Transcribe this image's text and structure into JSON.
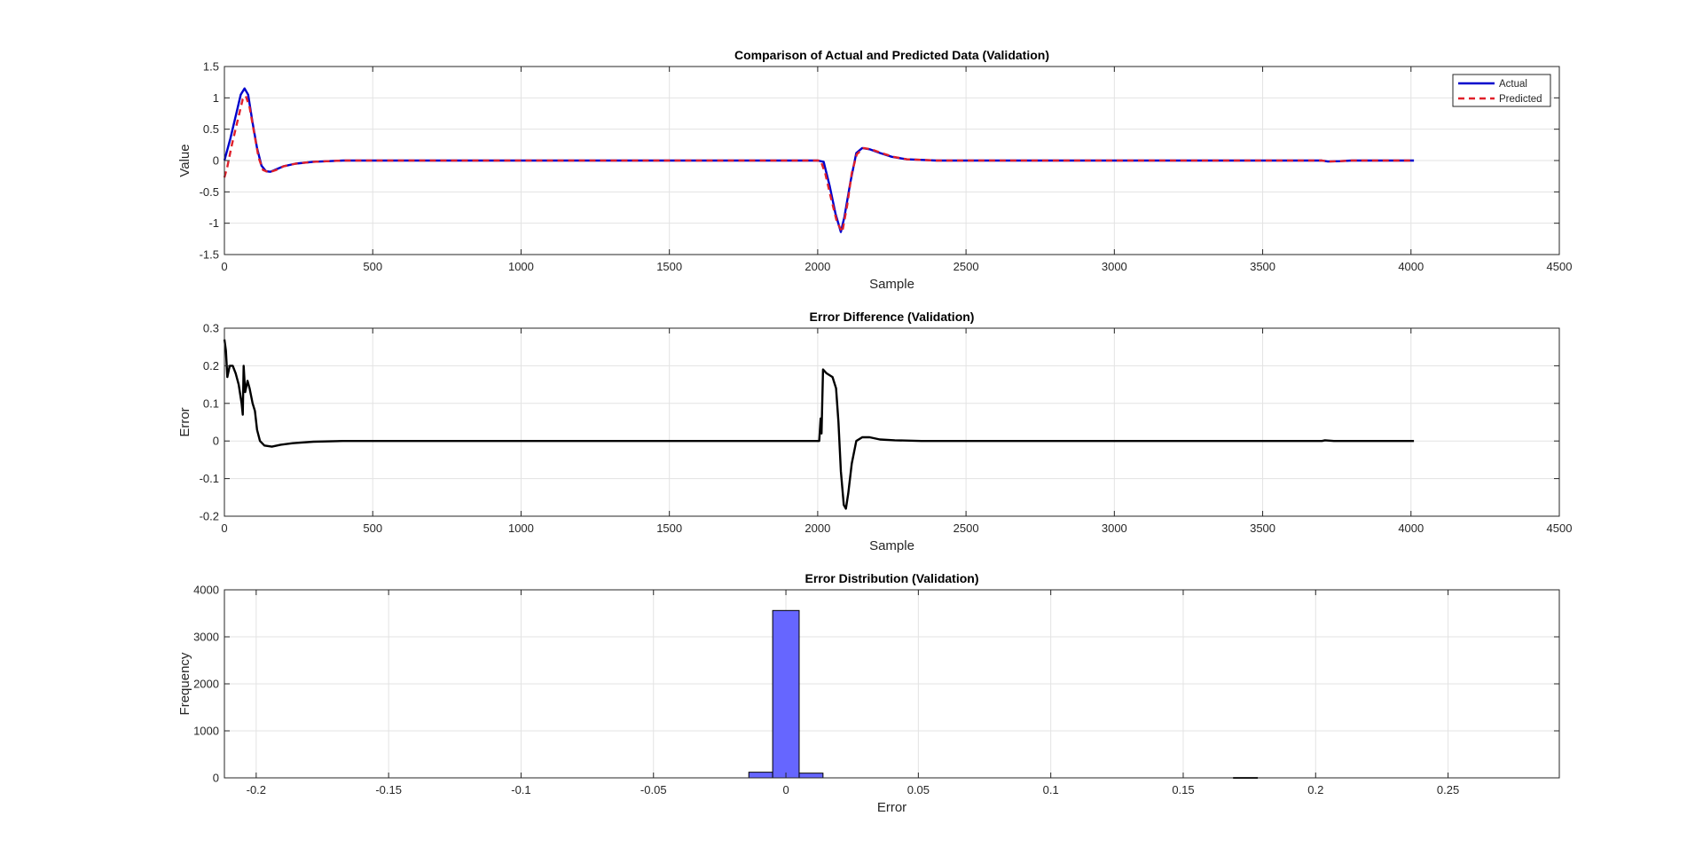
{
  "chart_data": [
    {
      "type": "line",
      "title": "Comparison of Actual and Predicted Data (Validation)",
      "xlabel": "Sample",
      "ylabel": "Value",
      "xlim": [
        0,
        4500
      ],
      "ylim": [
        -1.5,
        1.5
      ],
      "xticks": [
        0,
        500,
        1000,
        1500,
        2000,
        2500,
        3000,
        3500,
        4000,
        4500
      ],
      "yticks": [
        -1.5,
        -1,
        -0.5,
        0,
        0.5,
        1,
        1.5
      ],
      "xtick_labels": [
        "0",
        "500",
        "1000",
        "1500",
        "2000",
        "2500",
        "3000",
        "3500",
        "4000",
        "4500"
      ],
      "ytick_labels": [
        "-1.5",
        "-1",
        "-0.5",
        "0",
        "0.5",
        "1",
        "1.5"
      ],
      "grid": true,
      "legend": "top-right",
      "series": [
        {
          "name": "Actual",
          "color": "#0000cc",
          "style": "solid",
          "points": [
            [
              0,
              0
            ],
            [
              20,
              0.35
            ],
            [
              40,
              0.75
            ],
            [
              55,
              1.05
            ],
            [
              68,
              1.15
            ],
            [
              80,
              1.05
            ],
            [
              95,
              0.6
            ],
            [
              110,
              0.2
            ],
            [
              125,
              -0.08
            ],
            [
              140,
              -0.17
            ],
            [
              155,
              -0.18
            ],
            [
              175,
              -0.14
            ],
            [
              200,
              -0.09
            ],
            [
              240,
              -0.05
            ],
            [
              300,
              -0.02
            ],
            [
              400,
              0
            ],
            [
              2000,
              0
            ],
            [
              2020,
              -0.02
            ],
            [
              2040,
              -0.4
            ],
            [
              2060,
              -0.85
            ],
            [
              2078,
              -1.14
            ],
            [
              2090,
              -0.9
            ],
            [
              2110,
              -0.35
            ],
            [
              2130,
              0.12
            ],
            [
              2150,
              0.2
            ],
            [
              2175,
              0.18
            ],
            [
              2210,
              0.12
            ],
            [
              2250,
              0.06
            ],
            [
              2300,
              0.02
            ],
            [
              2400,
              0
            ],
            [
              3700,
              0
            ],
            [
              3720,
              -0.015
            ],
            [
              3760,
              -0.01
            ],
            [
              3800,
              0
            ],
            [
              4010,
              0
            ]
          ]
        },
        {
          "name": "Predicted",
          "color": "#e0202a",
          "style": "dashed",
          "points": [
            [
              0,
              -0.27
            ],
            [
              10,
              -0.1
            ],
            [
              25,
              0.25
            ],
            [
              45,
              0.65
            ],
            [
              62,
              0.98
            ],
            [
              72,
              1.03
            ],
            [
              85,
              0.85
            ],
            [
              100,
              0.45
            ],
            [
              115,
              0.05
            ],
            [
              130,
              -0.15
            ],
            [
              150,
              -0.19
            ],
            [
              175,
              -0.15
            ],
            [
              200,
              -0.09
            ],
            [
              240,
              -0.05
            ],
            [
              300,
              -0.02
            ],
            [
              400,
              0
            ],
            [
              2010,
              0
            ],
            [
              2025,
              -0.2
            ],
            [
              2045,
              -0.6
            ],
            [
              2065,
              -0.98
            ],
            [
              2083,
              -1.14
            ],
            [
              2100,
              -0.7
            ],
            [
              2115,
              -0.2
            ],
            [
              2132,
              0.1
            ],
            [
              2155,
              0.2
            ],
            [
              2180,
              0.18
            ],
            [
              2215,
              0.12
            ],
            [
              2255,
              0.06
            ],
            [
              2300,
              0.02
            ],
            [
              2400,
              0
            ],
            [
              3700,
              0
            ],
            [
              3720,
              -0.015
            ],
            [
              3760,
              -0.01
            ],
            [
              3800,
              0
            ],
            [
              4010,
              0
            ]
          ]
        }
      ]
    },
    {
      "type": "line",
      "title": "Error Difference (Validation)",
      "xlabel": "Sample",
      "ylabel": "Error",
      "xlim": [
        0,
        4500
      ],
      "ylim": [
        -0.2,
        0.3
      ],
      "xticks": [
        0,
        500,
        1000,
        1500,
        2000,
        2500,
        3000,
        3500,
        4000,
        4500
      ],
      "yticks": [
        -0.2,
        -0.1,
        0,
        0.1,
        0.2,
        0.3
      ],
      "xtick_labels": [
        "0",
        "500",
        "1000",
        "1500",
        "2000",
        "2500",
        "3000",
        "3500",
        "4000",
        "4500"
      ],
      "ytick_labels": [
        "-0.2",
        "-0.1",
        "0",
        "0.1",
        "0.2",
        "0.3"
      ],
      "grid": true,
      "series": [
        {
          "color": "#000000",
          "style": "solid",
          "points": [
            [
              0,
              0.27
            ],
            [
              5,
              0.24
            ],
            [
              10,
              0.17
            ],
            [
              18,
              0.2
            ],
            [
              28,
              0.2
            ],
            [
              38,
              0.18
            ],
            [
              48,
              0.15
            ],
            [
              58,
              0.1
            ],
            [
              62,
              0.07
            ],
            [
              65,
              0.2
            ],
            [
              70,
              0.13
            ],
            [
              78,
              0.16
            ],
            [
              85,
              0.14
            ],
            [
              95,
              0.1
            ],
            [
              103,
              0.08
            ],
            [
              110,
              0.03
            ],
            [
              120,
              0.0
            ],
            [
              135,
              -0.012
            ],
            [
              160,
              -0.015
            ],
            [
              190,
              -0.01
            ],
            [
              230,
              -0.006
            ],
            [
              300,
              -0.002
            ],
            [
              400,
              0
            ],
            [
              2005,
              0
            ],
            [
              2010,
              0.06
            ],
            [
              2013,
              0.02
            ],
            [
              2018,
              0.19
            ],
            [
              2030,
              0.18
            ],
            [
              2050,
              0.17
            ],
            [
              2062,
              0.14
            ],
            [
              2070,
              0.05
            ],
            [
              2078,
              -0.08
            ],
            [
              2088,
              -0.17
            ],
            [
              2095,
              -0.18
            ],
            [
              2103,
              -0.14
            ],
            [
              2115,
              -0.06
            ],
            [
              2130,
              0.0
            ],
            [
              2150,
              0.01
            ],
            [
              2175,
              0.01
            ],
            [
              2210,
              0.004
            ],
            [
              2260,
              0.002
            ],
            [
              2350,
              0
            ],
            [
              3700,
              0
            ],
            [
              3710,
              0.002
            ],
            [
              3740,
              0
            ],
            [
              4010,
              0
            ]
          ]
        }
      ]
    },
    {
      "type": "bar",
      "title": "Error Distribution (Validation)",
      "xlabel": "Error",
      "ylabel": "Frequency",
      "xlim": [
        -0.212,
        0.292
      ],
      "ylim": [
        0,
        4000
      ],
      "xticks": [
        -0.2,
        -0.15,
        -0.1,
        -0.05,
        0,
        0.05,
        0.1,
        0.15,
        0.2,
        0.25
      ],
      "yticks": [
        0,
        1000,
        2000,
        3000,
        4000
      ],
      "xtick_labels": [
        "-0.2",
        "-0.15",
        "-0.1",
        "-0.05",
        "0",
        "0.05",
        "0.1",
        "0.15",
        "0.2",
        "0.25"
      ],
      "ytick_labels": [
        "0",
        "1000",
        "2000",
        "3000",
        "4000"
      ],
      "grid": true,
      "bar_color": "#6666ff",
      "bins": [
        {
          "from": -0.014,
          "to": -0.005,
          "count": 120
        },
        {
          "from": -0.005,
          "to": 0.005,
          "count": 3560
        },
        {
          "from": 0.005,
          "to": 0.014,
          "count": 100
        },
        {
          "from": 0.169,
          "to": 0.178,
          "count": 8
        }
      ]
    }
  ]
}
